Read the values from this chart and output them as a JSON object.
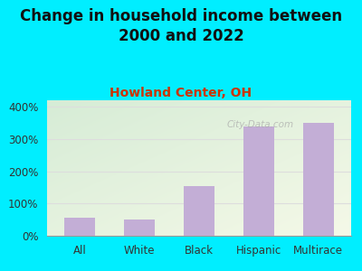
{
  "title": "Change in household income between\n2000 and 2022",
  "subtitle": "Howland Center, OH",
  "categories": [
    "All",
    "White",
    "Black",
    "Hispanic",
    "Multirace"
  ],
  "values": [
    55,
    50,
    155,
    338,
    350
  ],
  "bar_color": "#c3aed6",
  "title_fontsize": 12,
  "subtitle_fontsize": 10,
  "subtitle_color": "#cc3300",
  "background_outer": "#00eeff",
  "background_plot_top_left": "#d6ecd6",
  "background_plot_bottom_right": "#f5f9e8",
  "yticks": [
    0,
    100,
    200,
    300,
    400
  ],
  "ylim": [
    0,
    420
  ],
  "watermark": "City-Data.com",
  "grid_color": "#dddddd"
}
